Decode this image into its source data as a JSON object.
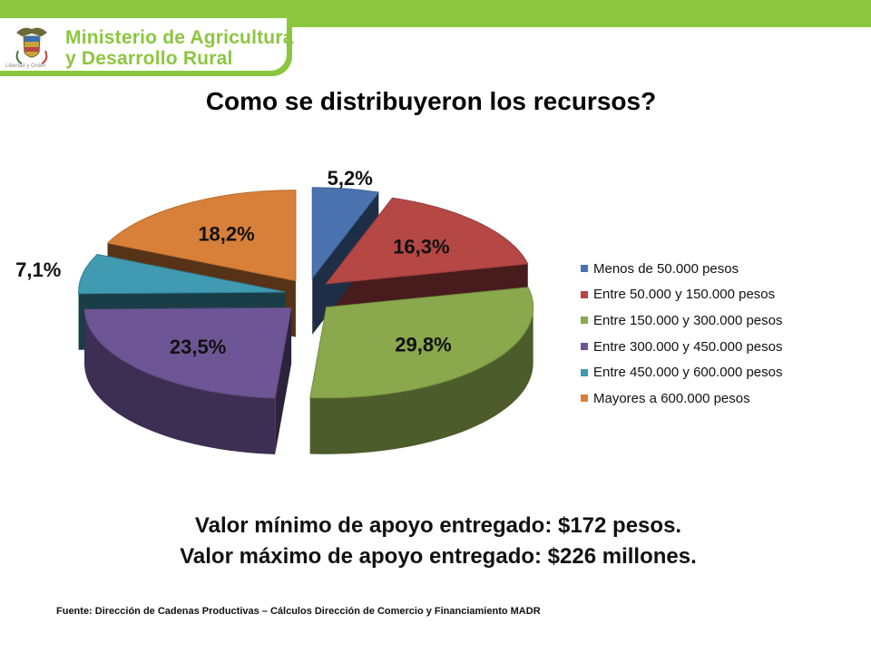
{
  "header": {
    "brand_line1": "Ministerio de Agricultura",
    "brand_line2": "y Desarrollo Rural",
    "motto": "Libertad y Orden",
    "crest_icon": "coat-of-arms-icon",
    "accent_color": "#8cc63f"
  },
  "title": "Como se distribuyeron los recursos?",
  "chart_data": {
    "type": "pie",
    "style": "3d-exploded",
    "title": "",
    "legend_position": "right",
    "categories": [
      "Menos de 50.000 pesos",
      "Entre 50.000 y 150.000 pesos",
      "Entre 150.000 y 300.000 pesos",
      "Entre 300.000 y 450.000 pesos",
      "Entre 450.000 y 600.000 pesos",
      "Mayores a 600.000 pesos"
    ],
    "values": [
      5.2,
      16.3,
      29.8,
      23.5,
      7.1,
      18.2
    ],
    "data_labels": [
      "5,2%",
      "16,3%",
      "29,8%",
      "23,5%",
      "7,1%",
      "18,2%"
    ],
    "colors": [
      "#4a73b0",
      "#b54745",
      "#8aa84c",
      "#6e5696",
      "#3f9ab2",
      "#d88039"
    ]
  },
  "notes": {
    "min_value": "Valor mínimo de apoyo entregado: $172 pesos.",
    "max_value": "Valor máximo de apoyo entregado: $226 millones."
  },
  "source": "Fuente: Dirección de Cadenas Productivas – Cálculos Dirección de Comercio y Financiamiento MADR"
}
